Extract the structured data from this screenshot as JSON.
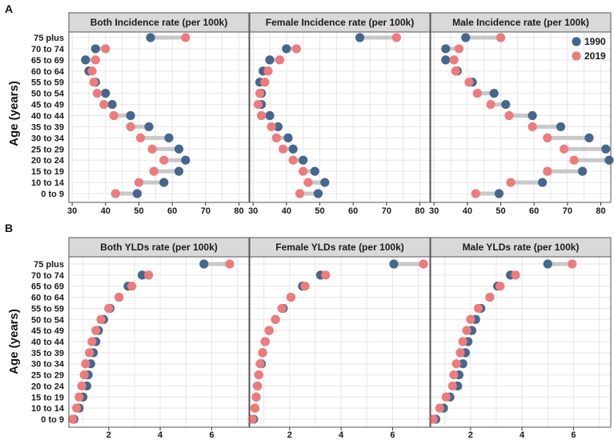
{
  "colors": {
    "y1990": "#45678e",
    "y2019": "#ee7b7b",
    "segment": "#c8c8c8",
    "strip": "#d9d9d9",
    "grid": "#e6e6e6"
  },
  "legend": {
    "items": [
      {
        "label": "1990",
        "color": "#45678e"
      },
      {
        "label": "2019",
        "color": "#ee7b7b"
      }
    ]
  },
  "chart_data": [
    {
      "type": "scatter",
      "panel_label": "A",
      "ylabel": "Age (years)",
      "categories": [
        "75 plus",
        "70 to 74",
        "65 to 69",
        "60 to 64",
        "55 to 59",
        "50 to 54",
        "45 to 49",
        "40 to 44",
        "35 to 39",
        "30 to 34",
        "25 to 29",
        "20 to 24",
        "15 to 19",
        "10 to 14",
        "0 to 9"
      ],
      "xlim": [
        29,
        83
      ],
      "xticks": [
        30,
        40,
        50,
        60,
        70,
        80
      ],
      "facets": [
        {
          "title": "Both Incidence rate (per 100k)",
          "series": [
            {
              "name": "1990",
              "values": [
                53.5,
                37,
                34,
                35,
                37,
                40,
                42,
                47.5,
                53,
                59,
                62,
                64,
                62,
                57.5,
                49.5
              ]
            },
            {
              "name": "2019",
              "values": [
                64,
                40,
                37,
                36,
                36.5,
                37.5,
                39.5,
                42.5,
                47.5,
                50.5,
                54,
                57.5,
                54.5,
                50,
                43
              ]
            }
          ]
        },
        {
          "title": "Female Incidence rate (per 100k)",
          "series": [
            {
              "name": "1990",
              "values": [
                62,
                40,
                35,
                33,
                32,
                32.5,
                32.5,
                35,
                37.5,
                40.5,
                42,
                45,
                48.5,
                51.5,
                49.5
              ]
            },
            {
              "name": "2019",
              "values": [
                73,
                43,
                38,
                34.5,
                33.5,
                32,
                31.5,
                32.5,
                35.5,
                37,
                39,
                42,
                45,
                46.5,
                44
              ]
            }
          ]
        },
        {
          "title": "Male Incidence rate (per 100k)",
          "series": [
            {
              "name": "1990",
              "values": [
                39.5,
                33.5,
                33.5,
                37,
                41.5,
                48,
                51.5,
                59.5,
                68,
                76.5,
                81.5,
                82.5,
                74.5,
                62.5,
                49.5
              ]
            },
            {
              "name": "2019",
              "values": [
                50,
                37.5,
                36,
                36.5,
                40.5,
                43,
                47,
                52.5,
                59.5,
                64,
                69,
                72,
                64,
                53,
                42.5
              ]
            }
          ]
        }
      ]
    },
    {
      "type": "scatter",
      "panel_label": "B",
      "ylabel": "Age (years)",
      "categories": [
        "75 plus",
        "70 to 74",
        "65 to 69",
        "60 to 64",
        "55 to 59",
        "50 to 54",
        "45 to 49",
        "40 to 44",
        "35 to 39",
        "30 to 34",
        "25 to 29",
        "20 to 24",
        "15 to 19",
        "10 to 14",
        "0 to 9"
      ],
      "xlim": [
        0.45,
        7.45
      ],
      "xticks": [
        2,
        4,
        6
      ],
      "facets": [
        {
          "title": "Both YLDs rate (per 100k)",
          "series": [
            {
              "name": "1990",
              "values": [
                5.7,
                3.3,
                2.75,
                2.4,
                2.05,
                1.8,
                1.6,
                1.5,
                1.4,
                1.3,
                1.2,
                1.15,
                1.0,
                0.85,
                0.65
              ]
            },
            {
              "name": "2019",
              "values": [
                6.7,
                3.55,
                2.9,
                2.4,
                2.0,
                1.7,
                1.5,
                1.35,
                1.25,
                1.1,
                1.05,
                0.95,
                0.85,
                0.75,
                0.6
              ]
            }
          ]
        },
        {
          "title": "Female YLDs rate (per 100k)",
          "series": [
            {
              "name": "1990",
              "values": [
                6.05,
                3.2,
                2.5,
                2.05,
                1.75,
                1.45,
                1.2,
                1.05,
                0.95,
                0.9,
                0.8,
                0.75,
                0.7,
                0.65,
                0.6
              ]
            },
            {
              "name": "2019",
              "values": [
                7.2,
                3.4,
                2.6,
                2.05,
                1.7,
                1.45,
                1.2,
                1.05,
                0.95,
                0.85,
                0.8,
                0.75,
                0.7,
                0.65,
                0.55
              ]
            }
          ]
        },
        {
          "title": "Male YLDs rate (per 100k)",
          "series": [
            {
              "name": "1990",
              "values": [
                5.0,
                3.55,
                3.05,
                2.75,
                2.4,
                2.2,
                2.05,
                1.9,
                1.8,
                1.7,
                1.55,
                1.5,
                1.2,
                0.95,
                0.65
              ]
            },
            {
              "name": "2019",
              "values": [
                5.95,
                3.75,
                3.15,
                2.75,
                2.3,
                2.0,
                1.85,
                1.7,
                1.6,
                1.45,
                1.35,
                1.3,
                1.05,
                0.8,
                0.55
              ]
            }
          ]
        }
      ]
    }
  ]
}
